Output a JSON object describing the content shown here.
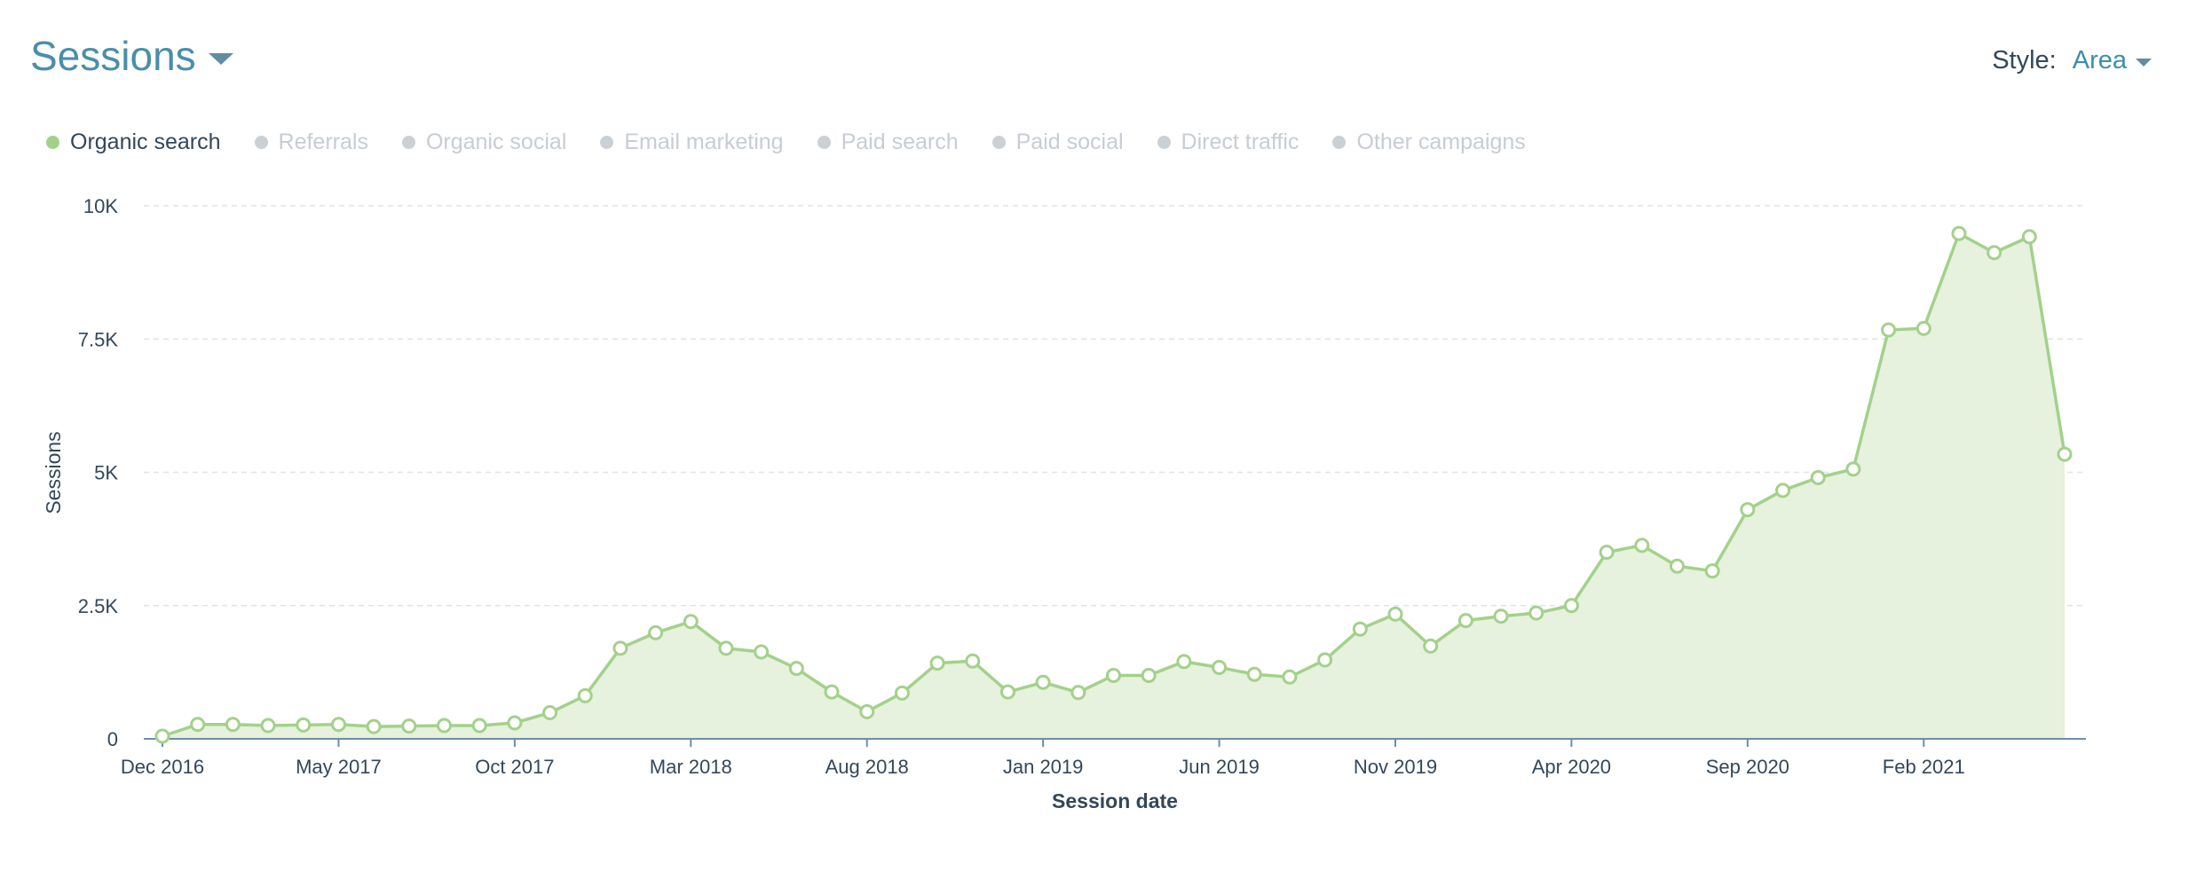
{
  "header": {
    "title": "Sessions",
    "style_label": "Style:",
    "style_value": "Area"
  },
  "legend": {
    "items": [
      {
        "label": "Organic search",
        "active": true,
        "color": "#a3d18a"
      },
      {
        "label": "Referrals",
        "active": false,
        "color": "#cbd0d5"
      },
      {
        "label": "Organic social",
        "active": false,
        "color": "#cbd0d5"
      },
      {
        "label": "Email marketing",
        "active": false,
        "color": "#cbd0d5"
      },
      {
        "label": "Paid search",
        "active": false,
        "color": "#cbd0d5"
      },
      {
        "label": "Paid social",
        "active": false,
        "color": "#cbd0d5"
      },
      {
        "label": "Direct traffic",
        "active": false,
        "color": "#cbd0d5"
      },
      {
        "label": "Other campaigns",
        "active": false,
        "color": "#cbd0d5"
      }
    ]
  },
  "chart_data": {
    "type": "area",
    "xlabel": "Session date",
    "ylabel": "Sessions",
    "ylim": [
      0,
      10000
    ],
    "yticks": [
      {
        "value": 0,
        "label": "0"
      },
      {
        "value": 2500,
        "label": "2.5K"
      },
      {
        "value": 5000,
        "label": "5K"
      },
      {
        "value": 7500,
        "label": "7.5K"
      },
      {
        "value": 10000,
        "label": "10K"
      }
    ],
    "grid": true,
    "xtick_labels": [
      {
        "index": 0,
        "label": "Dec 2016"
      },
      {
        "index": 5,
        "label": "May 2017"
      },
      {
        "index": 10,
        "label": "Oct 2017"
      },
      {
        "index": 15,
        "label": "Mar 2018"
      },
      {
        "index": 20,
        "label": "Aug 2018"
      },
      {
        "index": 25,
        "label": "Jan 2019"
      },
      {
        "index": 30,
        "label": "Jun 2019"
      },
      {
        "index": 35,
        "label": "Nov 2019"
      },
      {
        "index": 40,
        "label": "Apr 2020"
      },
      {
        "index": 45,
        "label": "Sep 2020"
      },
      {
        "index": 50,
        "label": "Feb 2021"
      }
    ],
    "series": [
      {
        "name": "Organic search",
        "color": "#a3d18a",
        "fill": "#e6f1de",
        "values": [
          50,
          270,
          270,
          250,
          260,
          270,
          230,
          240,
          250,
          250,
          300,
          490,
          810,
          1700,
          1990,
          2200,
          1700,
          1630,
          1320,
          880,
          510,
          860,
          1420,
          1460,
          880,
          1060,
          870,
          1190,
          1190,
          1450,
          1340,
          1210,
          1160,
          1480,
          2060,
          2340,
          1740,
          2220,
          2300,
          2360,
          2500,
          3500,
          3630,
          3240,
          3150,
          4300,
          4660,
          4900,
          5060,
          7670,
          7700,
          9480,
          9120,
          9420,
          5340
        ]
      }
    ]
  }
}
